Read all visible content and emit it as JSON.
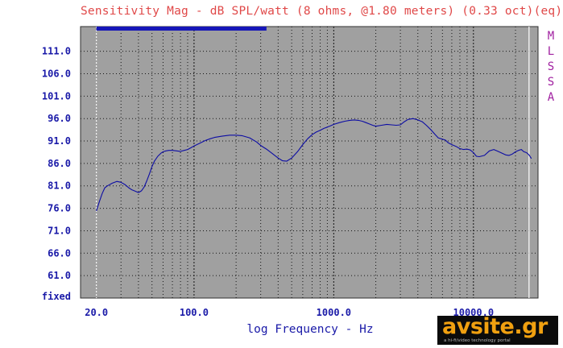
{
  "chart_data": {
    "type": "line",
    "title": "Sensitivity Mag - dB SPL/watt (8 ohms, @1.80 meters) (0.33 oct)(eq)",
    "xlabel": "log Frequency - Hz",
    "ylabel": "",
    "x_scale": "log",
    "xlim": [
      15.4,
      29000
    ],
    "ylim": [
      56.0,
      116.5
    ],
    "y_ticks": [
      "111.0",
      "106.0",
      "101.0",
      "96.0",
      "91.0",
      "86.0",
      "81.0",
      "76.0",
      "71.0",
      "66.0",
      "61.0"
    ],
    "y_bottom_label": "fixed",
    "x_ticks": [
      {
        "label": "20.0",
        "value": 20
      },
      {
        "label": "100.0",
        "value": 100
      },
      {
        "label": "1000.0",
        "value": 1000
      },
      {
        "label": "10000.0",
        "value": 10000
      }
    ],
    "side_labels": [
      "M",
      "L",
      "S",
      "S",
      "A"
    ],
    "grid": true,
    "colors": {
      "plot_bg": "#a0a0a0",
      "curve": "#0c0ca4",
      "axis_text": "#1a1aa8",
      "title": "#e04848",
      "side_label": "#a020a0",
      "top_bar": "#1616b8"
    },
    "series": [
      {
        "x": [
          20,
          21,
          22,
          23,
          24,
          26,
          28,
          30,
          32,
          34,
          36,
          38,
          40,
          42,
          44,
          46,
          48,
          50,
          52,
          55,
          58,
          60,
          63,
          66,
          70,
          75,
          80,
          85,
          90,
          95,
          100,
          110,
          120,
          130,
          140,
          160,
          180,
          200,
          220,
          250,
          280,
          300,
          330,
          360,
          400,
          430,
          460,
          500,
          550,
          600,
          650,
          700,
          750,
          800,
          850,
          900,
          950,
          1000,
          1100,
          1200,
          1300,
          1400,
          1500,
          1600,
          1700,
          1800,
          1900,
          2000,
          2200,
          2400,
          2600,
          2800,
          3000,
          3200,
          3400,
          3700,
          4000,
          4300,
          4600,
          5000,
          5300,
          5600,
          6000,
          6300,
          6600,
          7000,
          7500,
          8000,
          8500,
          9000,
          9500,
          10000,
          10500,
          11000,
          12000,
          13000,
          14000,
          15000,
          16000,
          17000,
          18000,
          19000,
          20000,
          21000,
          22000,
          23000,
          24000,
          25000,
          26000
        ],
        "y": [
          75.4,
          77.5,
          79.3,
          80.6,
          81.0,
          81.6,
          82.0,
          81.8,
          81.3,
          80.6,
          80.1,
          79.8,
          79.5,
          79.9,
          80.8,
          82.2,
          83.7,
          85.3,
          86.5,
          87.6,
          88.3,
          88.6,
          88.8,
          88.9,
          88.9,
          88.8,
          88.7,
          88.9,
          89.1,
          89.5,
          89.9,
          90.5,
          91.1,
          91.5,
          91.8,
          92.1,
          92.3,
          92.3,
          92.2,
          91.7,
          90.8,
          90.0,
          89.2,
          88.3,
          87.2,
          86.6,
          86.5,
          87.2,
          88.6,
          90.2,
          91.5,
          92.4,
          93.0,
          93.4,
          93.8,
          94.1,
          94.4,
          94.7,
          95.1,
          95.4,
          95.6,
          95.7,
          95.6,
          95.4,
          95.1,
          94.8,
          94.5,
          94.3,
          94.5,
          94.7,
          94.6,
          94.5,
          94.6,
          95.3,
          95.8,
          96.0,
          95.7,
          95.3,
          94.5,
          93.4,
          92.5,
          91.7,
          91.4,
          91.2,
          90.6,
          90.2,
          89.8,
          89.3,
          89.1,
          89.2,
          89.0,
          88.4,
          87.6,
          87.5,
          87.8,
          88.8,
          89.1,
          88.7,
          88.3,
          87.9,
          87.8,
          88.1,
          88.6,
          88.9,
          89.1,
          88.6,
          88.4,
          87.9,
          87.1
        ]
      }
    ]
  },
  "logo": {
    "main": "avsite.gr",
    "sub": "a hi-fi/video technology portal"
  }
}
